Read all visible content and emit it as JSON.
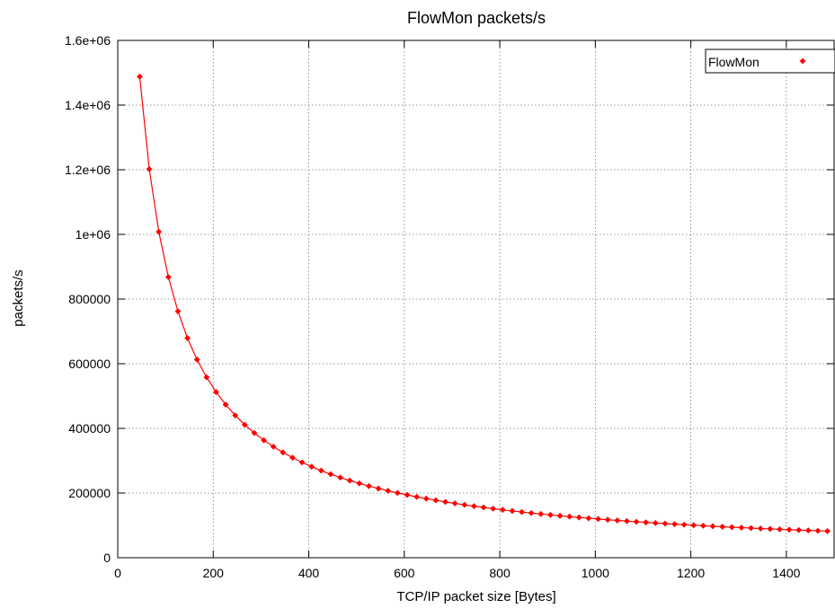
{
  "chart_data": {
    "type": "line",
    "title": "FlowMon packets/s",
    "xlabel": "TCP/IP packet size [Bytes]",
    "ylabel": "packets/s",
    "xlim": [
      0,
      1500
    ],
    "ylim": [
      0,
      1600000
    ],
    "x_ticks": [
      0,
      200,
      400,
      600,
      800,
      1000,
      1200,
      1400
    ],
    "x_tick_labels": [
      "0",
      "200",
      "400",
      "600",
      "800",
      "1000",
      "1200",
      "1400"
    ],
    "y_ticks": [
      0,
      200000,
      400000,
      600000,
      800000,
      1000000,
      1200000,
      1400000,
      1600000
    ],
    "y_tick_labels": [
      "0",
      "200000",
      "400000",
      "600000",
      "800000",
      "1e+06",
      "1.2e+06",
      "1.4e+06",
      "1.6e+06"
    ],
    "grid": true,
    "legend_position": "top-right",
    "series": [
      {
        "name": "FlowMon",
        "color": "#ff0000",
        "marker": "diamond",
        "x": [
          46,
          66,
          86,
          106,
          126,
          146,
          166,
          186,
          206,
          226,
          246,
          266,
          286,
          306,
          326,
          346,
          366,
          386,
          406,
          426,
          446,
          466,
          486,
          506,
          526,
          546,
          566,
          586,
          606,
          626,
          646,
          666,
          686,
          706,
          726,
          746,
          766,
          786,
          806,
          826,
          846,
          866,
          886,
          906,
          926,
          946,
          966,
          986,
          1006,
          1026,
          1046,
          1066,
          1086,
          1106,
          1126,
          1146,
          1166,
          1186,
          1206,
          1226,
          1246,
          1266,
          1286,
          1306,
          1326,
          1346,
          1366,
          1386,
          1406,
          1426,
          1446,
          1466,
          1486
        ],
        "y": [
          1488095,
          1201923,
          1008065,
          867953,
          762195,
          679348,
          612745,
          558036,
          512295,
          473485,
          440141,
          411184,
          385802,
          363372,
          343407,
          325521,
          309406,
          294811,
          281532,
          269397,
          258264,
          248016,
          238550,
          229779,
          221631,
          214041,
          206954,
          200321,
          194099,
          188253,
          182749,
          177557,
          172652,
          168011,
          163613,
          159439,
          155473,
          151699,
          148104,
          144676,
          141403,
          138274,
          135281,
          132415,
          129668,
          127033,
          124502,
          122070,
          119732,
          117481,
          115314,
          113225,
          111210,
          109267,
          107390,
          105577,
          103825,
          102131,
          100492,
          98906,
          97370,
          95883,
          94441,
          93043,
          91687,
          90372,
          89094,
          87854,
          86649,
          85478,
          84340,
          83234,
          82157
        ]
      }
    ]
  }
}
